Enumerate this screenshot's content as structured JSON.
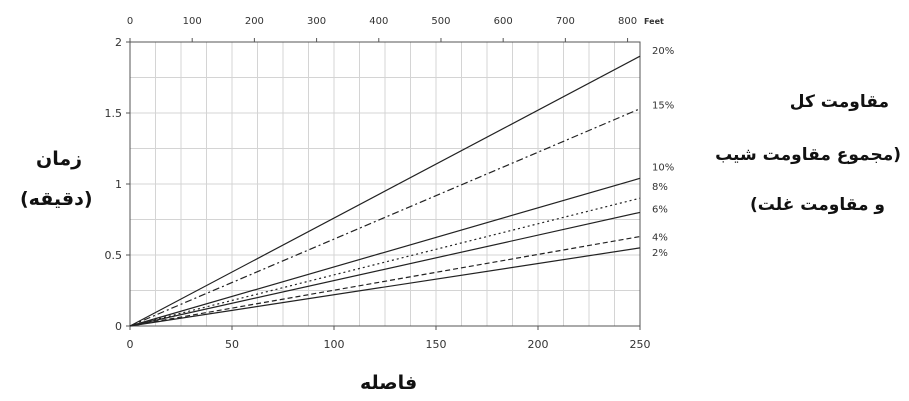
{
  "labels": {
    "y_line1": "زمان",
    "y_line2": "(دقیقه)",
    "x_label": "فاصله",
    "legend_note_1": "مقاومت کل",
    "legend_note_2": "(مجموع مقاومت شیب",
    "legend_note_3": "و مقاومت غلت)",
    "top_axis_unit": "Feet"
  },
  "chart_data": {
    "type": "line",
    "title": "",
    "xlabel": "فاصله",
    "ylabel": "زمان (دقیقه)",
    "xlim": [
      0,
      250
    ],
    "ylim": [
      0,
      2
    ],
    "x_ticks": [
      0,
      50,
      100,
      150,
      200,
      250
    ],
    "y_ticks": [
      "0",
      "0.5",
      "1",
      "1.5",
      "2"
    ],
    "y_tick_values": [
      0,
      0.5,
      1,
      1.5,
      2
    ],
    "top_axis": {
      "unit": "Feet",
      "ticks": [
        0,
        100,
        200,
        300,
        400,
        500,
        600,
        700,
        800
      ],
      "max": 820
    },
    "grid": true,
    "series": [
      {
        "name": "20%",
        "style": "solid",
        "x": [
          0,
          250
        ],
        "y": [
          0,
          1.9
        ]
      },
      {
        "name": "15%",
        "style": "dashdot",
        "x": [
          0,
          250
        ],
        "y": [
          0,
          1.53
        ]
      },
      {
        "name": "10%",
        "style": "solid",
        "x": [
          0,
          250
        ],
        "y": [
          0,
          1.04
        ]
      },
      {
        "name": "8%",
        "style": "dotted",
        "x": [
          0,
          250
        ],
        "y": [
          0,
          0.9
        ]
      },
      {
        "name": "6%",
        "style": "solid",
        "x": [
          0,
          250
        ],
        "y": [
          0,
          0.8
        ]
      },
      {
        "name": "4%",
        "style": "dashed",
        "x": [
          0,
          250
        ],
        "y": [
          0,
          0.63
        ]
      },
      {
        "name": "2%",
        "style": "solid",
        "x": [
          0,
          250
        ],
        "y": [
          0,
          0.55
        ]
      }
    ]
  }
}
